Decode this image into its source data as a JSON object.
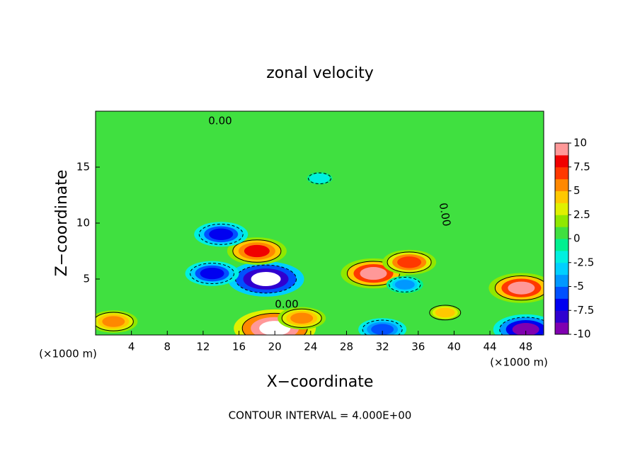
{
  "chart_data": {
    "type": "contour",
    "title": "zonal velocity",
    "xlabel": "X−coordinate",
    "ylabel": "Z−coordinate",
    "x_unit": "(×1000 m)",
    "footer": "CONTOUR INTERVAL = 4.000E+00",
    "contour_label": "0.00",
    "xlim": [
      0,
      50
    ],
    "ylim": [
      0,
      20
    ],
    "xticks": [
      4,
      8,
      12,
      16,
      20,
      24,
      28,
      32,
      36,
      40,
      44,
      48
    ],
    "yticks": [
      5,
      10,
      15
    ],
    "clim": [
      -10,
      10
    ],
    "cticks": [
      10,
      7.5,
      5,
      2.5,
      0,
      -2.5,
      -5,
      -7.5,
      -10
    ],
    "colormap": [
      "#8000b0",
      "#3000d0",
      "#0000f0",
      "#0050ff",
      "#0098ff",
      "#00d0ff",
      "#00f0e0",
      "#00f090",
      "#40e040",
      "#90e800",
      "#e0f000",
      "#ffc800",
      "#ff8800",
      "#ff3800",
      "#f00000",
      "#ff9898"
    ],
    "features": [
      {
        "x": 20,
        "z": 0.6,
        "value": 12
      },
      {
        "x": 31,
        "z": 5.5,
        "value": 9
      },
      {
        "x": 47.5,
        "z": 4.2,
        "value": 9
      },
      {
        "x": 19,
        "z": 5,
        "value": -11
      },
      {
        "x": 18,
        "z": 7.5,
        "value": 8
      },
      {
        "x": 14,
        "z": 9,
        "value": -7
      },
      {
        "x": 13,
        "z": 5.5,
        "value": -7
      },
      {
        "x": 25,
        "z": 14,
        "value": -2
      },
      {
        "x": 34.5,
        "z": 4.5,
        "value": -4
      },
      {
        "x": 2,
        "z": 1.2,
        "value": 6
      },
      {
        "x": 35,
        "z": 6.5,
        "value": 7
      },
      {
        "x": 39,
        "z": 2,
        "value": 4
      },
      {
        "x": 48,
        "z": 0.5,
        "value": -9
      },
      {
        "x": 32,
        "z": 0.5,
        "value": -6
      },
      {
        "x": 23,
        "z": 1.5,
        "value": 6
      }
    ]
  }
}
